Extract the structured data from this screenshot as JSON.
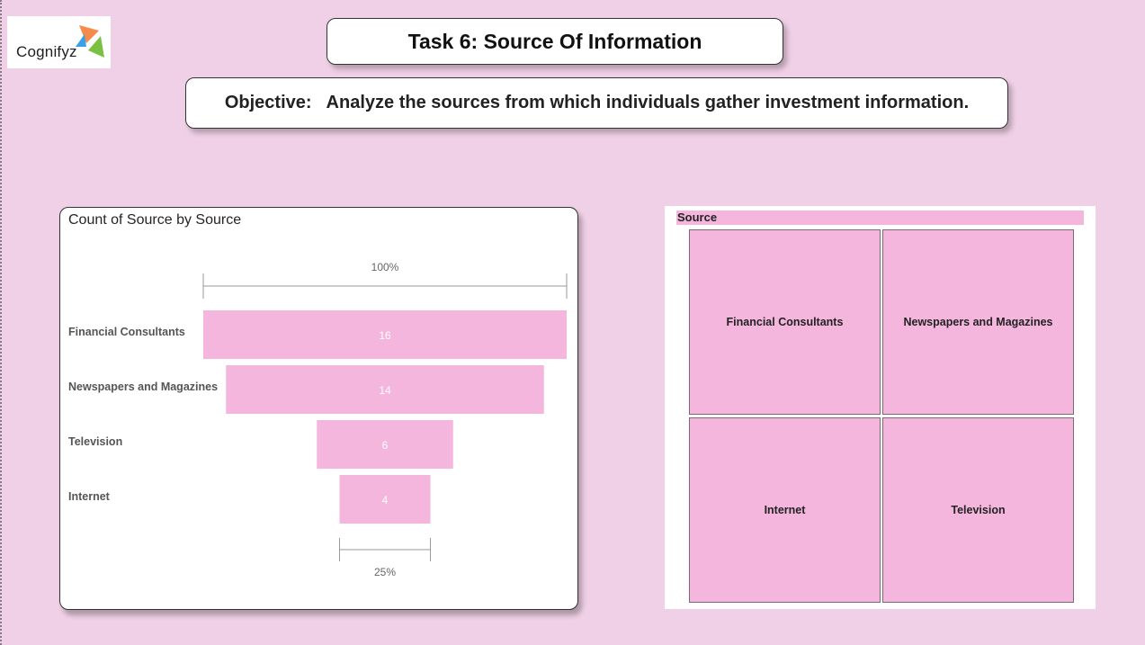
{
  "logo": {
    "text": "Cognifyz"
  },
  "header": {
    "title": "Task 6: Source Of Information",
    "objective_label": "Objective:",
    "objective_text": "Analyze the sources from which individuals gather investment information."
  },
  "colors": {
    "background": "#f0d0e6",
    "bar": "#f4b6dd",
    "card": "#ffffff"
  },
  "funnel": {
    "top_pct_label": "100%",
    "bottom_pct_label": "25%"
  },
  "chart_data": {
    "type": "bar",
    "subtype": "funnel",
    "title": "Count of Source by Source",
    "categories": [
      "Financial Consultants",
      "Newspapers and Magazines",
      "Television",
      "Internet"
    ],
    "values": [
      16,
      14,
      6,
      4
    ]
  },
  "treemap": {
    "title": "Source",
    "tiles": [
      "Financial Consultants",
      "Newspapers and Magazines",
      "Internet",
      "Television"
    ]
  }
}
